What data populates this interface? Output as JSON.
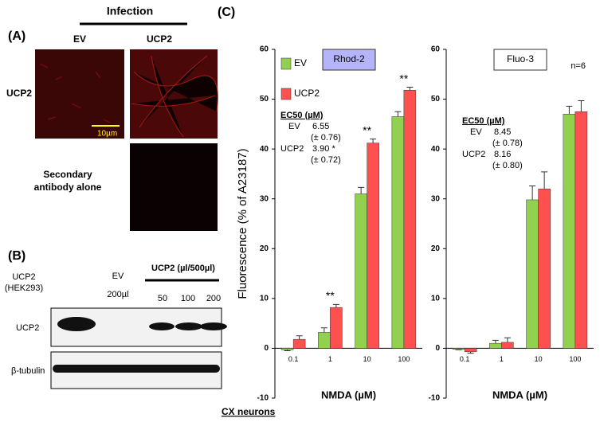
{
  "panel_labels": [
    "(A)",
    "(B)",
    "(C)"
  ],
  "panel_a": {
    "header": "Infection",
    "columns": [
      "EV",
      "UCP2"
    ],
    "row_label": "UCP2",
    "scale_bar": "10µm",
    "secondary": [
      "Secondary",
      "antibody alone"
    ]
  },
  "panel_b": {
    "lane_labels": [
      "UCP2",
      "(HEK293)",
      "EV",
      "200µl"
    ],
    "group": "UCP2 (µl/500µl)",
    "doses": [
      "50",
      "100",
      "200"
    ],
    "rows": [
      "UCP2",
      "β-tubulin"
    ]
  },
  "chart_data": [
    {
      "type": "bar",
      "title": "Rhod-2",
      "y_label": "Fluorescence (% of A23187)",
      "x_label": "NMDA (µM)",
      "categories": [
        "0.1",
        "1",
        "10",
        "100"
      ],
      "series": [
        {
          "name": "EV",
          "color": "#92d050",
          "values": [
            -0.3,
            3.2,
            31,
            46.5
          ],
          "errors": [
            0.2,
            0.9,
            1.3,
            1.0
          ]
        },
        {
          "name": "UCP2",
          "color": "#ff5050",
          "values": [
            1.8,
            8.2,
            41.2,
            51.8
          ],
          "errors": [
            0.7,
            0.6,
            0.8,
            0.6
          ]
        }
      ],
      "significance": [
        null,
        "**",
        "**",
        "**"
      ],
      "ylim": [
        -10,
        60
      ],
      "yticks": [
        -10,
        0,
        10,
        20,
        30,
        40,
        50,
        60
      ],
      "legend": true,
      "annotation": {
        "heading": "EC50 (µM)",
        "rows": [
          {
            "name": "EV",
            "value": "6.55",
            "sd": "(± 0.76)"
          },
          {
            "name": "UCP2",
            "value": "3.90 *",
            "sd": "(± 0.72)"
          }
        ]
      }
    },
    {
      "type": "bar",
      "title": "Fluo-3",
      "x_label": "NMDA (µM)",
      "note": "n=6",
      "categories": [
        "0.1",
        "1",
        "10",
        "100"
      ],
      "series": [
        {
          "name": "EV",
          "color": "#92d050",
          "values": [
            -0.2,
            1.0,
            29.8,
            47.0
          ],
          "errors": [
            0.1,
            0.6,
            2.8,
            1.6
          ]
        },
        {
          "name": "UCP2",
          "color": "#ff5050",
          "values": [
            -0.7,
            1.2,
            32.0,
            47.5
          ],
          "errors": [
            0.3,
            0.9,
            3.4,
            2.2
          ]
        }
      ],
      "ylim": [
        -10,
        60
      ],
      "yticks": [
        -10,
        0,
        10,
        20,
        30,
        40,
        50,
        60
      ],
      "legend": false,
      "annotation": {
        "heading": "EC50 (µM)",
        "rows": [
          {
            "name": "EV",
            "value": "8.45",
            "sd": "(± 0.78)"
          },
          {
            "name": "UCP2",
            "value": "8.16",
            "sd": "(± 0.80)"
          }
        ]
      }
    }
  ],
  "footer": "CX neurons"
}
